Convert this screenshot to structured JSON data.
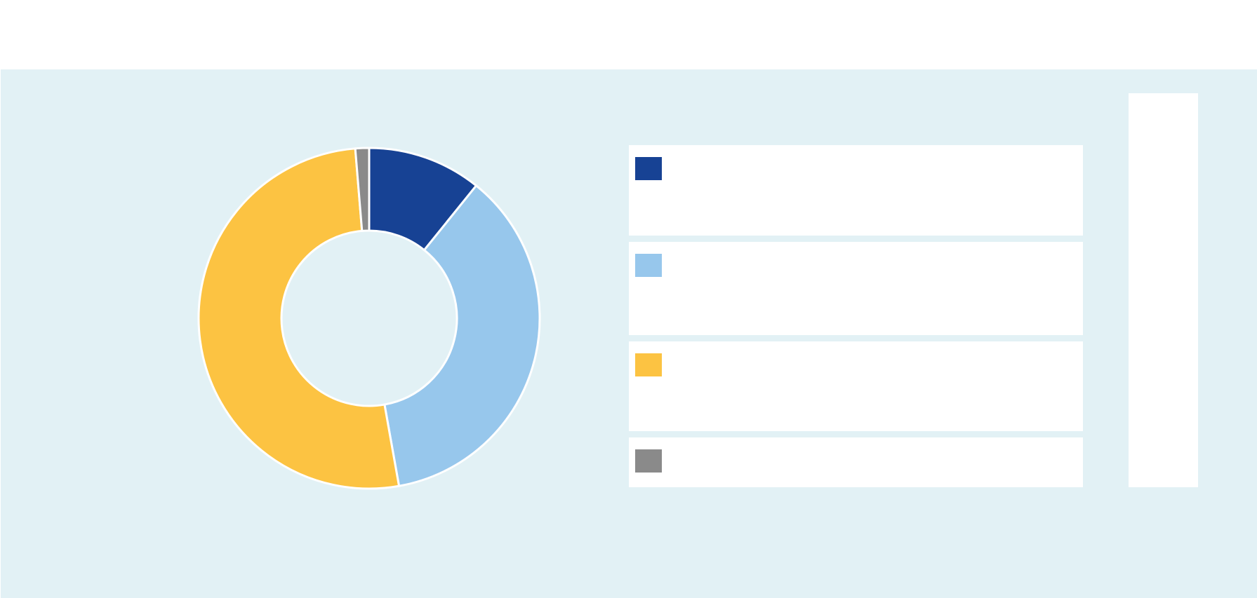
{
  "chart_data": {
    "type": "pie",
    "donut": true,
    "title": "",
    "slices": [
      {
        "label": "",
        "value": 10.8,
        "color": "#174294"
      },
      {
        "label": "",
        "value": 36.4,
        "color": "#97c7ec"
      },
      {
        "label": "",
        "value": 51.5,
        "color": "#fcc342"
      },
      {
        "label": "",
        "value": 1.3,
        "color": "#8a8a8a"
      }
    ],
    "legend": "right"
  },
  "colors": {
    "panel_background": "#e2f1f5",
    "slice_border": "#ffffff"
  }
}
